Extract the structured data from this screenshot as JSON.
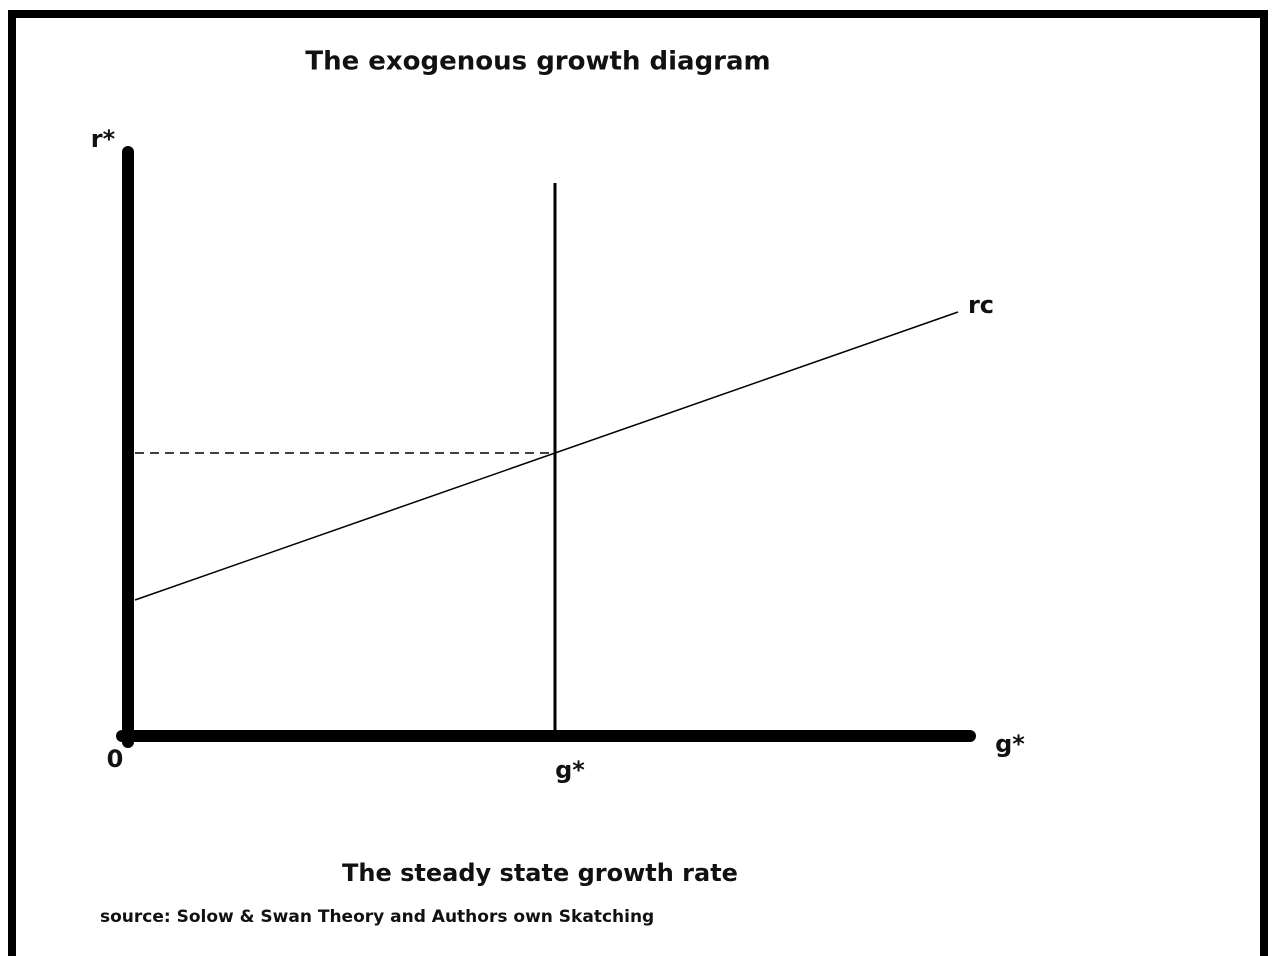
{
  "title": "The exogenous growth diagram",
  "axes": {
    "y_label": "r*",
    "x_label": "g*",
    "origin": "0"
  },
  "curve": {
    "label": "rc"
  },
  "equilibrium": {
    "label": "g*"
  },
  "caption": "The steady state growth rate",
  "source": "source: Solow & Swan Theory and Authors own Skatching"
}
